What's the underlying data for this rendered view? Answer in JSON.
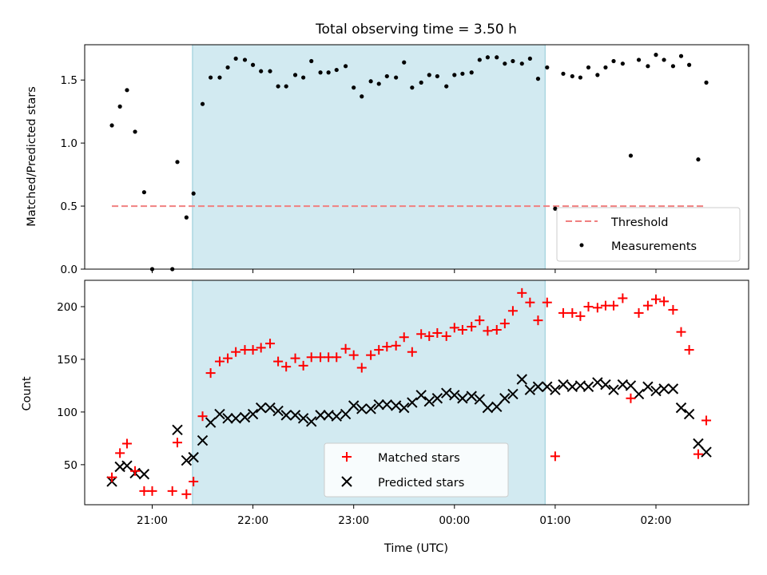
{
  "chart_data": {
    "type": "scatter",
    "title": "Total observing time = 3.50 h",
    "xlabel": "Time (UTC)",
    "x_unit": "hours after 20:00 UTC on the first night",
    "xlim": [
      0.33,
      6.92
    ],
    "x_ticks": [
      {
        "value": 1,
        "label": "21:00"
      },
      {
        "value": 2,
        "label": "22:00"
      },
      {
        "value": 3,
        "label": "23:00"
      },
      {
        "value": 4,
        "label": "00:00"
      },
      {
        "value": 5,
        "label": "01:00"
      },
      {
        "value": 6,
        "label": "02:00"
      }
    ],
    "observing_window": {
      "start": 1.4,
      "end": 4.9,
      "color": "#add8e6"
    },
    "top_panel": {
      "ylabel": "Matched/Predicted stars",
      "ylim": [
        0,
        1.78
      ],
      "y_ticks": [
        "0.0",
        "0.5",
        "1.0",
        "1.5"
      ],
      "threshold": {
        "name": "Threshold",
        "value": 0.5,
        "x_range": [
          0.6,
          6.5
        ],
        "color": "#f08080"
      },
      "measurements": {
        "name": "Measurements",
        "color": "#000000",
        "points": [
          [
            0.6,
            1.14
          ],
          [
            0.68,
            1.29
          ],
          [
            0.75,
            1.42
          ],
          [
            0.83,
            1.09
          ],
          [
            0.92,
            0.61
          ],
          [
            1.0,
            0.0
          ],
          [
            1.2,
            0.0
          ],
          [
            1.25,
            0.85
          ],
          [
            1.34,
            0.41
          ],
          [
            1.41,
            0.6
          ],
          [
            1.5,
            1.31
          ],
          [
            1.58,
            1.52
          ],
          [
            1.67,
            1.52
          ],
          [
            1.75,
            1.6
          ],
          [
            1.83,
            1.67
          ],
          [
            1.92,
            1.66
          ],
          [
            2.0,
            1.62
          ],
          [
            2.08,
            1.57
          ],
          [
            2.17,
            1.57
          ],
          [
            2.25,
            1.45
          ],
          [
            2.33,
            1.45
          ],
          [
            2.42,
            1.54
          ],
          [
            2.5,
            1.52
          ],
          [
            2.58,
            1.65
          ],
          [
            2.67,
            1.56
          ],
          [
            2.75,
            1.56
          ],
          [
            2.83,
            1.58
          ],
          [
            2.92,
            1.61
          ],
          [
            3.0,
            1.44
          ],
          [
            3.08,
            1.37
          ],
          [
            3.17,
            1.49
          ],
          [
            3.25,
            1.47
          ],
          [
            3.33,
            1.53
          ],
          [
            3.42,
            1.52
          ],
          [
            3.5,
            1.64
          ],
          [
            3.58,
            1.44
          ],
          [
            3.67,
            1.48
          ],
          [
            3.75,
            1.54
          ],
          [
            3.83,
            1.53
          ],
          [
            3.92,
            1.45
          ],
          [
            4.0,
            1.54
          ],
          [
            4.08,
            1.55
          ],
          [
            4.17,
            1.56
          ],
          [
            4.25,
            1.66
          ],
          [
            4.33,
            1.68
          ],
          [
            4.42,
            1.68
          ],
          [
            4.5,
            1.63
          ],
          [
            4.58,
            1.65
          ],
          [
            4.67,
            1.63
          ],
          [
            4.75,
            1.67
          ],
          [
            4.83,
            1.51
          ],
          [
            4.92,
            1.6
          ],
          [
            5.0,
            0.48
          ],
          [
            5.08,
            1.55
          ],
          [
            5.17,
            1.53
          ],
          [
            5.25,
            1.52
          ],
          [
            5.33,
            1.6
          ],
          [
            5.42,
            1.54
          ],
          [
            5.5,
            1.6
          ],
          [
            5.58,
            1.65
          ],
          [
            5.67,
            1.63
          ],
          [
            5.75,
            0.9
          ],
          [
            5.83,
            1.66
          ],
          [
            5.92,
            1.61
          ],
          [
            6.0,
            1.7
          ],
          [
            6.08,
            1.66
          ],
          [
            6.17,
            1.61
          ],
          [
            6.25,
            1.69
          ],
          [
            6.33,
            1.62
          ],
          [
            6.42,
            0.87
          ],
          [
            6.5,
            1.48
          ]
        ]
      },
      "legend": {
        "position": "lower right",
        "entries": [
          "Threshold",
          "Measurements"
        ]
      }
    },
    "bottom_panel": {
      "ylabel": "Count",
      "ylim": [
        12,
        225
      ],
      "y_ticks": [
        "50",
        "100",
        "150",
        "200"
      ],
      "series": [
        {
          "name": "Matched stars",
          "marker": "+",
          "color": "#ff0000",
          "points": [
            [
              0.6,
              38
            ],
            [
              0.68,
              61
            ],
            [
              0.75,
              70
            ],
            [
              0.83,
              44
            ],
            [
              0.92,
              25
            ],
            [
              1.0,
              25
            ],
            [
              1.2,
              25
            ],
            [
              1.25,
              71
            ],
            [
              1.34,
              22
            ],
            [
              1.41,
              34
            ],
            [
              1.5,
              96
            ],
            [
              1.58,
              137
            ],
            [
              1.67,
              148
            ],
            [
              1.75,
              151
            ],
            [
              1.83,
              157
            ],
            [
              1.92,
              159
            ],
            [
              2.0,
              159
            ],
            [
              2.08,
              161
            ],
            [
              2.17,
              165
            ],
            [
              2.25,
              148
            ],
            [
              2.33,
              143
            ],
            [
              2.42,
              151
            ],
            [
              2.5,
              144
            ],
            [
              2.58,
              152
            ],
            [
              2.67,
              152
            ],
            [
              2.75,
              152
            ],
            [
              2.83,
              152
            ],
            [
              2.92,
              160
            ],
            [
              3.0,
              154
            ],
            [
              3.08,
              142
            ],
            [
              3.17,
              154
            ],
            [
              3.25,
              159
            ],
            [
              3.33,
              162
            ],
            [
              3.42,
              163
            ],
            [
              3.5,
              171
            ],
            [
              3.58,
              157
            ],
            [
              3.67,
              174
            ],
            [
              3.75,
              172
            ],
            [
              3.83,
              175
            ],
            [
              3.92,
              172
            ],
            [
              4.0,
              180
            ],
            [
              4.08,
              178
            ],
            [
              4.17,
              181
            ],
            [
              4.25,
              187
            ],
            [
              4.33,
              177
            ],
            [
              4.42,
              178
            ],
            [
              4.5,
              184
            ],
            [
              4.58,
              196
            ],
            [
              4.67,
              213
            ],
            [
              4.75,
              204
            ],
            [
              4.83,
              187
            ],
            [
              4.92,
              204
            ],
            [
              5.0,
              58
            ],
            [
              5.08,
              194
            ],
            [
              5.17,
              194
            ],
            [
              5.25,
              191
            ],
            [
              5.33,
              200
            ],
            [
              5.42,
              199
            ],
            [
              5.5,
              201
            ],
            [
              5.58,
              201
            ],
            [
              5.67,
              208
            ],
            [
              5.75,
              113
            ],
            [
              5.83,
              194
            ],
            [
              5.92,
              201
            ],
            [
              6.0,
              207
            ],
            [
              6.08,
              205
            ],
            [
              6.17,
              197
            ],
            [
              6.25,
              176
            ],
            [
              6.33,
              159
            ],
            [
              6.42,
              60
            ],
            [
              6.5,
              92
            ]
          ]
        },
        {
          "name": "Predicted stars",
          "marker": "x",
          "color": "#000000",
          "points": [
            [
              0.6,
              34
            ],
            [
              0.68,
              48
            ],
            [
              0.75,
              49
            ],
            [
              0.83,
              42
            ],
            [
              0.92,
              41
            ],
            [
              1.25,
              83
            ],
            [
              1.34,
              54
            ],
            [
              1.41,
              57
            ],
            [
              1.5,
              73
            ],
            [
              1.58,
              90
            ],
            [
              1.67,
              98
            ],
            [
              1.75,
              94
            ],
            [
              1.83,
              94
            ],
            [
              1.92,
              95
            ],
            [
              2.0,
              98
            ],
            [
              2.08,
              104
            ],
            [
              2.17,
              104
            ],
            [
              2.25,
              101
            ],
            [
              2.33,
              97
            ],
            [
              2.42,
              97
            ],
            [
              2.5,
              94
            ],
            [
              2.58,
              91
            ],
            [
              2.67,
              97
            ],
            [
              2.75,
              97
            ],
            [
              2.83,
              96
            ],
            [
              2.92,
              98
            ],
            [
              3.0,
              106
            ],
            [
              3.08,
              103
            ],
            [
              3.17,
              103
            ],
            [
              3.25,
              107
            ],
            [
              3.33,
              107
            ],
            [
              3.42,
              106
            ],
            [
              3.5,
              104
            ],
            [
              3.58,
              109
            ],
            [
              3.67,
              116
            ],
            [
              3.75,
              110
            ],
            [
              3.83,
              113
            ],
            [
              3.92,
              118
            ],
            [
              4.0,
              116
            ],
            [
              4.08,
              113
            ],
            [
              4.17,
              115
            ],
            [
              4.25,
              112
            ],
            [
              4.33,
              104
            ],
            [
              4.42,
              105
            ],
            [
              4.5,
              113
            ],
            [
              4.58,
              117
            ],
            [
              4.67,
              131
            ],
            [
              4.75,
              121
            ],
            [
              4.83,
              124
            ],
            [
              4.92,
              124
            ],
            [
              5.0,
              121
            ],
            [
              5.08,
              126
            ],
            [
              5.17,
              124
            ],
            [
              5.25,
              125
            ],
            [
              5.33,
              124
            ],
            [
              5.42,
              128
            ],
            [
              5.5,
              126
            ],
            [
              5.58,
              121
            ],
            [
              5.67,
              126
            ],
            [
              5.75,
              125
            ],
            [
              5.83,
              117
            ],
            [
              5.92,
              124
            ],
            [
              6.0,
              120
            ],
            [
              6.08,
              122
            ],
            [
              6.17,
              122
            ],
            [
              6.25,
              104
            ],
            [
              6.33,
              98
            ],
            [
              6.42,
              70
            ],
            [
              6.5,
              62
            ]
          ]
        }
      ],
      "legend": {
        "position": "lower center",
        "entries": [
          "Matched stars",
          "Predicted stars"
        ]
      }
    }
  }
}
